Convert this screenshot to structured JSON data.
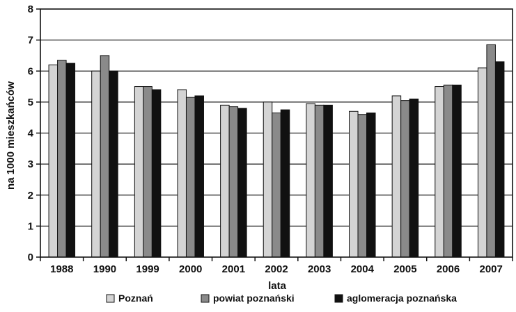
{
  "chart_data": {
    "type": "bar",
    "xlabel": "lata",
    "ylabel": "na 1000 mieszkańców",
    "ylim": [
      0,
      8
    ],
    "yticks": [
      0,
      1,
      2,
      3,
      4,
      5,
      6,
      7,
      8
    ],
    "grid": "horizontal",
    "legend_position": "bottom",
    "categories": [
      "1988",
      "1990",
      "1999",
      "2000",
      "2001",
      "2002",
      "2003",
      "2004",
      "2005",
      "2006",
      "2007"
    ],
    "series": [
      {
        "name": "Poznań",
        "color": "#d4d4d4",
        "values": [
          6.2,
          6.0,
          5.5,
          5.4,
          4.9,
          5.0,
          4.95,
          4.7,
          5.2,
          5.5,
          6.1
        ]
      },
      {
        "name": "powiat poznański",
        "color": "#8a8a8a",
        "values": [
          6.35,
          6.5,
          5.5,
          5.15,
          4.85,
          4.65,
          4.9,
          4.6,
          5.05,
          5.55,
          6.85
        ]
      },
      {
        "name": "aglomeracja poznańska",
        "color": "#111111",
        "values": [
          6.25,
          6.0,
          5.4,
          5.2,
          4.8,
          4.75,
          4.9,
          4.65,
          5.1,
          5.55,
          6.3
        ]
      }
    ]
  }
}
